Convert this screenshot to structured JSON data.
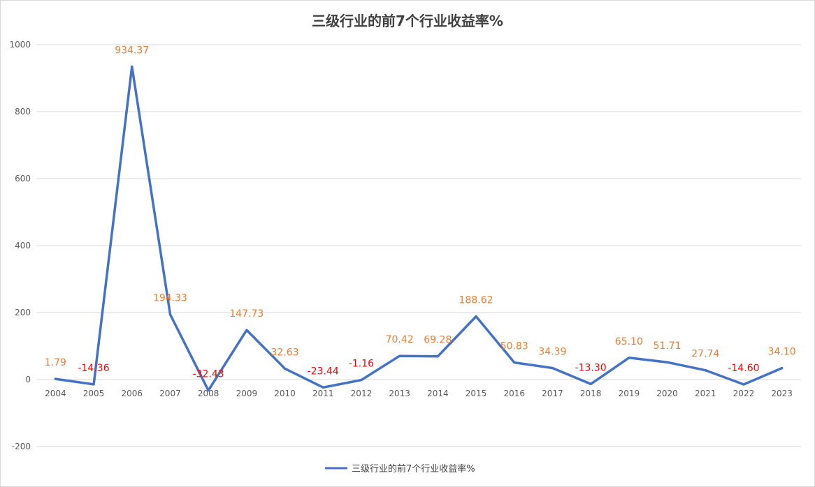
{
  "chart_data": {
    "type": "line",
    "title": "三级行业的前7个行业收益率%",
    "xlabel": "",
    "ylabel": "",
    "categories": [
      "2004",
      "2005",
      "2006",
      "2007",
      "2008",
      "2009",
      "2010",
      "2011",
      "2012",
      "2013",
      "2014",
      "2015",
      "2016",
      "2017",
      "2018",
      "2019",
      "2020",
      "2021",
      "2022",
      "2023"
    ],
    "series": [
      {
        "name": "三级行业的前7个行业收益率%",
        "color": "#4472C4",
        "values": [
          1.79,
          -14.36,
          934.37,
          194.33,
          -32.43,
          147.73,
          32.63,
          -23.44,
          -1.16,
          70.42,
          69.28,
          188.62,
          50.83,
          34.39,
          -13.3,
          65.1,
          51.71,
          27.74,
          -14.6,
          34.1
        ],
        "labels": [
          "1.79",
          "-14.36",
          "934.37",
          "194.33",
          "-32.43",
          "147.73",
          "32.63",
          "-23.44",
          "-1.16",
          "70.42",
          "69.28",
          "188.62",
          "50.83",
          "34.39",
          "-13.30",
          "65.10",
          "51.71",
          "27.74",
          "-14.60",
          "34.10"
        ]
      }
    ],
    "ylim": [
      -200,
      1000
    ],
    "yticks": [
      -200,
      0,
      200,
      400,
      600,
      800,
      1000
    ],
    "grid": true,
    "legend_position": "bottom",
    "label_colors": {
      "positive": "#ED7D31",
      "negative": "#FF0000"
    },
    "gridline_color": "#D9D9D9"
  }
}
